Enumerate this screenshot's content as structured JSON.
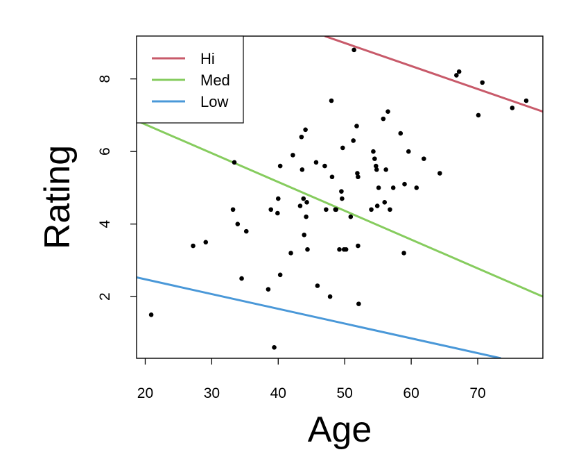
{
  "chart_data": {
    "type": "scatter",
    "xlabel": "Age",
    "ylabel": "Rating",
    "xlim": [
      18.7,
      79.8
    ],
    "ylim": [
      0.3,
      9.18
    ],
    "x_ticks": [
      20,
      30,
      40,
      50,
      60,
      70
    ],
    "y_ticks": [
      2,
      4,
      6,
      8
    ],
    "legend": {
      "position": "top-left",
      "entries": [
        {
          "label": "Hi",
          "color": "#c85a6a"
        },
        {
          "label": "Med",
          "color": "#86cc5e"
        },
        {
          "label": "Low",
          "color": "#4a98d8"
        }
      ]
    },
    "lines": [
      {
        "name": "Hi",
        "color": "#c85a6a",
        "x": [
          47.0,
          79.8
        ],
        "y": [
          9.18,
          7.1
        ]
      },
      {
        "name": "Med",
        "color": "#86cc5e",
        "x": [
          18.7,
          79.8
        ],
        "y": [
          6.85,
          2.0
        ]
      },
      {
        "name": "Low",
        "color": "#4a98d8",
        "x": [
          18.7,
          73.5
        ],
        "y": [
          2.53,
          0.3
        ]
      }
    ],
    "points": {
      "color": "#000000",
      "x": [
        20.9,
        27.2,
        29.1,
        33.2,
        33.4,
        33.9,
        34.5,
        35.2,
        38.5,
        38.9,
        39.4,
        39.9,
        40.0,
        40.3,
        40.3,
        41.9,
        42.2,
        43.3,
        43.5,
        43.6,
        43.8,
        43.9,
        44.1,
        44.2,
        44.3,
        44.4,
        45.7,
        45.9,
        47.0,
        47.2,
        47.8,
        48.0,
        48.1,
        48.6,
        48.7,
        49.2,
        49.5,
        49.6,
        49.7,
        49.9,
        50.2,
        50.9,
        51.3,
        51.4,
        51.8,
        51.9,
        52.0,
        52.0,
        52.1,
        54.0,
        54.3,
        54.5,
        54.7,
        54.8,
        54.9,
        55.1,
        55.8,
        56.0,
        56.2,
        56.5,
        56.8,
        57.3,
        58.4,
        58.9,
        59.0,
        59.6,
        60.8,
        61.9,
        64.3,
        66.8,
        67.2,
        70.1,
        70.7,
        75.2,
        77.3
      ],
      "y": [
        1.5,
        3.4,
        3.5,
        4.4,
        5.7,
        4.0,
        2.5,
        3.8,
        2.2,
        4.4,
        0.6,
        4.3,
        4.7,
        5.6,
        2.6,
        3.2,
        5.9,
        4.5,
        6.4,
        5.5,
        4.7,
        3.7,
        6.6,
        4.2,
        4.6,
        3.3,
        5.7,
        2.3,
        5.6,
        4.4,
        2.0,
        7.4,
        5.3,
        4.4,
        4.4,
        3.3,
        4.9,
        4.7,
        6.1,
        3.3,
        3.3,
        4.2,
        6.3,
        8.8,
        6.7,
        5.4,
        5.3,
        3.4,
        1.8,
        4.4,
        6.0,
        5.8,
        5.6,
        5.5,
        4.5,
        5.0,
        6.9,
        4.6,
        5.5,
        7.1,
        4.4,
        5.0,
        6.5,
        3.2,
        5.1,
        6.0,
        5.0,
        5.8,
        5.4,
        8.1,
        8.2,
        7.0,
        7.9,
        7.2,
        7.4
      ]
    }
  }
}
